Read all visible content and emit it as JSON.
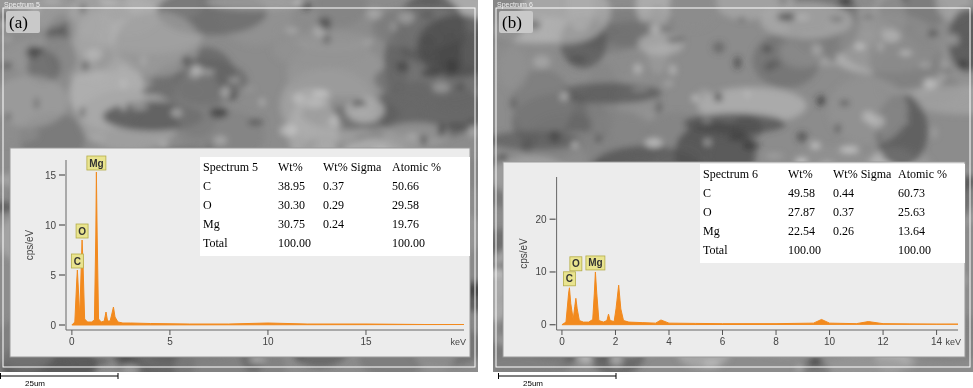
{
  "chart_data": [
    {
      "type": "line",
      "panel_label": "(a)",
      "title": "Spectrum 5",
      "x_label": "keV",
      "y_label": "cps/eV",
      "scale_bar": "25um",
      "color": "#f28a1e",
      "x": [
        0,
        0.15,
        0.25,
        0.28,
        0.32,
        0.4,
        0.48,
        0.52,
        0.57,
        0.65,
        0.8,
        1.0,
        1.15,
        1.22,
        1.25,
        1.29,
        1.36,
        1.5,
        1.65,
        1.74,
        1.82,
        1.95,
        2.05,
        2.12,
        2.2,
        2.35,
        2.6,
        3,
        4,
        6,
        8,
        10,
        12,
        15,
        18,
        20
      ],
      "values": [
        0,
        0.3,
        4.5,
        5.5,
        4,
        0.8,
        6,
        8.5,
        6,
        0.6,
        0.3,
        0.3,
        0.5,
        9,
        15.3,
        9,
        0.6,
        0.3,
        0.4,
        1.3,
        0.4,
        0.4,
        1.2,
        1.8,
        0.8,
        0.3,
        0.2,
        0.2,
        0.15,
        0.1,
        0.1,
        0.2,
        0.1,
        0.1,
        0.05,
        0.05
      ],
      "xlim": [
        -0.3,
        20
      ],
      "ylim": [
        -0.5,
        16.5
      ],
      "xticks": [
        0,
        5,
        10,
        15
      ],
      "yticks": [
        0,
        5,
        10,
        15
      ],
      "annotations": [
        {
          "text": "C",
          "x": 0.28
        },
        {
          "text": "O",
          "x": 0.52
        },
        {
          "text": "Mg",
          "x": 1.25
        }
      ],
      "table": {
        "columns": [
          "Spectrum 5",
          "Wt%",
          "Wt% Sigma",
          "Atomic %"
        ],
        "rows": [
          [
            "C",
            "38.95",
            "0.37",
            "50.66"
          ],
          [
            "O",
            "30.30",
            "0.29",
            "29.58"
          ],
          [
            "Mg",
            "30.75",
            "0.24",
            "19.76"
          ],
          [
            "Total",
            "100.00",
            null,
            "100.00"
          ]
        ]
      }
    },
    {
      "type": "line",
      "panel_label": "(b)",
      "title": "Spectrum 6",
      "x_label": "keV",
      "y_label": "cps/eV",
      "scale_bar": "25um",
      "color": "#f28a1e",
      "x": [
        0,
        0.15,
        0.25,
        0.28,
        0.33,
        0.42,
        0.48,
        0.52,
        0.57,
        0.65,
        0.8,
        1.0,
        1.15,
        1.21,
        1.25,
        1.3,
        1.38,
        1.55,
        1.68,
        1.74,
        1.8,
        1.95,
        2.02,
        2.12,
        2.2,
        2.3,
        2.5,
        3,
        3.5,
        3.7,
        4,
        5,
        6,
        8,
        9.4,
        9.7,
        10,
        11,
        11.45,
        12,
        13,
        14,
        14.8
      ],
      "values": [
        0,
        0.5,
        6,
        7,
        4,
        1,
        3.5,
        5,
        3,
        0.8,
        0.5,
        0.5,
        1,
        6,
        10,
        6,
        0.8,
        0.5,
        0.8,
        2,
        0.8,
        0.6,
        3,
        7.5,
        3,
        0.8,
        0.5,
        0.4,
        0.3,
        0.9,
        0.3,
        0.25,
        0.2,
        0.2,
        0.3,
        1,
        0.3,
        0.2,
        0.6,
        0.2,
        0.15,
        0.1,
        0.1
      ],
      "xlim": [
        -0.2,
        14.8
      ],
      "ylim": [
        -1,
        28
      ],
      "xticks": [
        0,
        2,
        4,
        6,
        8,
        10,
        12,
        14
      ],
      "yticks": [
        0,
        10,
        20
      ],
      "annotations": [
        {
          "text": "C",
          "x": 0.28
        },
        {
          "text": "O",
          "x": 0.52
        },
        {
          "text": "Mg",
          "x": 1.25
        }
      ],
      "table": {
        "columns": [
          "Spectrum 6",
          "Wt%",
          "Wt% Sigma",
          "Atomic %"
        ],
        "rows": [
          [
            "C",
            "49.58",
            "0.44",
            "60.73"
          ],
          [
            "O",
            "27.87",
            "0.37",
            "25.63"
          ],
          [
            "Mg",
            "22.54",
            "0.26",
            "13.64"
          ],
          [
            "Total",
            "100.00",
            null,
            "100.00"
          ]
        ]
      }
    }
  ]
}
